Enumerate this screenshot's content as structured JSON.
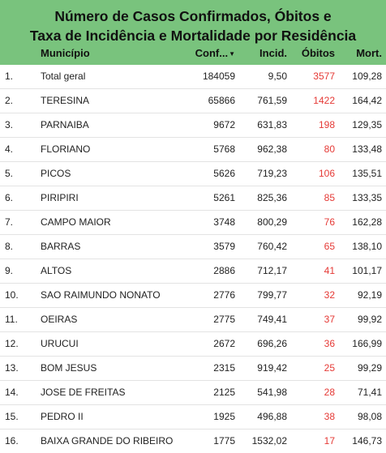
{
  "header": {
    "title_line1": "Número de Casos Confirmados, Óbitos e",
    "title_line2": "Taxa de Incidência e Mortalidade por Residência",
    "background_color": "#79c37d",
    "columns": {
      "municipio": "Município",
      "confirmados": "Conf...",
      "incidencia": "Incid.",
      "obitos": "Óbitos",
      "mortalidade": "Mort."
    },
    "sort_icon": "sort-descending-icon"
  },
  "obitos_color": "#e53935",
  "rows": [
    {
      "idx": "1.",
      "municipio": "Total geral",
      "confirmados": "184059",
      "incidencia": "9,50",
      "obitos": "3577",
      "mortalidade": "109,28"
    },
    {
      "idx": "2.",
      "municipio": "TERESINA",
      "confirmados": "65866",
      "incidencia": "761,59",
      "obitos": "1422",
      "mortalidade": "164,42"
    },
    {
      "idx": "3.",
      "municipio": "PARNAIBA",
      "confirmados": "9672",
      "incidencia": "631,83",
      "obitos": "198",
      "mortalidade": "129,35"
    },
    {
      "idx": "4.",
      "municipio": "FLORIANO",
      "confirmados": "5768",
      "incidencia": "962,38",
      "obitos": "80",
      "mortalidade": "133,48"
    },
    {
      "idx": "5.",
      "municipio": "PICOS",
      "confirmados": "5626",
      "incidencia": "719,23",
      "obitos": "106",
      "mortalidade": "135,51"
    },
    {
      "idx": "6.",
      "municipio": "PIRIPIRI",
      "confirmados": "5261",
      "incidencia": "825,36",
      "obitos": "85",
      "mortalidade": "133,35"
    },
    {
      "idx": "7.",
      "municipio": "CAMPO MAIOR",
      "confirmados": "3748",
      "incidencia": "800,29",
      "obitos": "76",
      "mortalidade": "162,28"
    },
    {
      "idx": "8.",
      "municipio": "BARRAS",
      "confirmados": "3579",
      "incidencia": "760,42",
      "obitos": "65",
      "mortalidade": "138,10"
    },
    {
      "idx": "9.",
      "municipio": "ALTOS",
      "confirmados": "2886",
      "incidencia": "712,17",
      "obitos": "41",
      "mortalidade": "101,17"
    },
    {
      "idx": "10.",
      "municipio": "SAO RAIMUNDO NONATO",
      "confirmados": "2776",
      "incidencia": "799,77",
      "obitos": "32",
      "mortalidade": "92,19"
    },
    {
      "idx": "11.",
      "municipio": "OEIRAS",
      "confirmados": "2775",
      "incidencia": "749,41",
      "obitos": "37",
      "mortalidade": "99,92"
    },
    {
      "idx": "12.",
      "municipio": "URUCUI",
      "confirmados": "2672",
      "incidencia": "696,26",
      "obitos": "36",
      "mortalidade": "166,99"
    },
    {
      "idx": "13.",
      "municipio": "BOM JESUS",
      "confirmados": "2315",
      "incidencia": "919,42",
      "obitos": "25",
      "mortalidade": "99,29"
    },
    {
      "idx": "14.",
      "municipio": "JOSE DE FREITAS",
      "confirmados": "2125",
      "incidencia": "541,98",
      "obitos": "28",
      "mortalidade": "71,41"
    },
    {
      "idx": "15.",
      "municipio": "PEDRO II",
      "confirmados": "1925",
      "incidencia": "496,88",
      "obitos": "38",
      "mortalidade": "98,08"
    },
    {
      "idx": "16.",
      "municipio": "BAIXA GRANDE DO RIBEIRO",
      "confirmados": "1775",
      "incidencia": "1532,02",
      "obitos": "17",
      "mortalidade": "146,73"
    }
  ]
}
